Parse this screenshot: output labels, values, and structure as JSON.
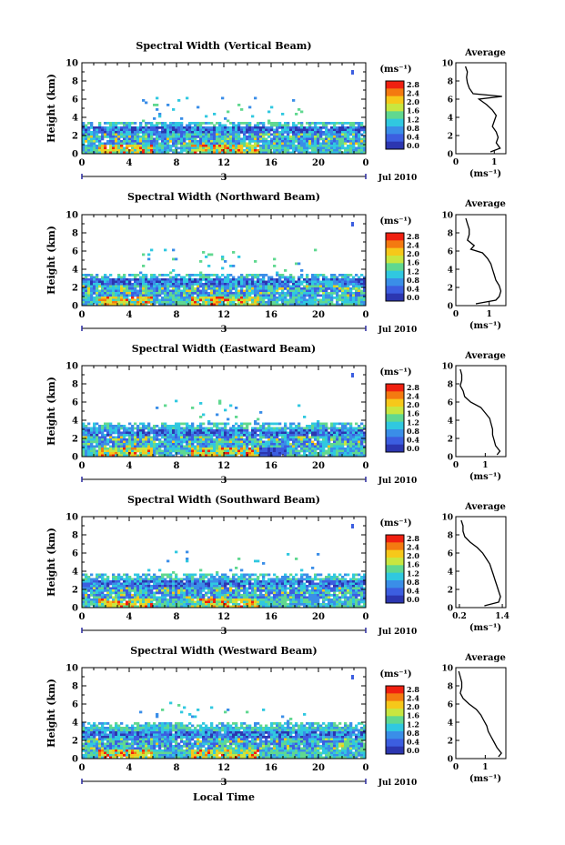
{
  "page": {
    "xlabel": "Local Time",
    "date_label": "Jul 2010",
    "day_label": "3"
  },
  "colorbar": {
    "unit_label": "(ms⁻¹)",
    "ticks": [
      "2.8",
      "2.4",
      "2.0",
      "1.6",
      "1.2",
      "0.8",
      "0.4",
      "0.0"
    ],
    "colors": [
      "#f02010",
      "#f47a10",
      "#f6c81a",
      "#c8e640",
      "#60d890",
      "#30c8e0",
      "#3a8ee8",
      "#3c5ee0",
      "#2c36b0"
    ]
  },
  "chart_data": [
    {
      "type": "heatmap",
      "title": "Spectral Width (Vertical Beam)",
      "ylabel": "Height (km)",
      "xlim": [
        0,
        24
      ],
      "ylim": [
        0,
        10
      ],
      "xticks": [
        "0",
        "4",
        "8",
        "12",
        "16",
        "20",
        "0"
      ],
      "yticks": [
        "0",
        "2",
        "4",
        "6",
        "8",
        "10"
      ],
      "cloud_top_km": 3.5,
      "avg_profile": {
        "title": "Average",
        "xlabel": "(ms⁻¹)",
        "xticks": [
          "0",
          "1"
        ],
        "xlim": [
          0,
          1.3
        ],
        "ylim": [
          0,
          10
        ],
        "points": [
          [
            0.25,
            9.6
          ],
          [
            0.3,
            9.0
          ],
          [
            0.28,
            8.4
          ],
          [
            0.3,
            7.8
          ],
          [
            0.35,
            7.2
          ],
          [
            0.45,
            6.6
          ],
          [
            1.2,
            6.3
          ],
          [
            0.6,
            6.0
          ],
          [
            0.8,
            5.4
          ],
          [
            0.95,
            4.8
          ],
          [
            1.05,
            4.2
          ],
          [
            1.0,
            3.6
          ],
          [
            0.95,
            3.0
          ],
          [
            1.05,
            2.4
          ],
          [
            1.1,
            1.8
          ],
          [
            1.05,
            1.2
          ],
          [
            1.15,
            0.6
          ],
          [
            0.9,
            0.2
          ]
        ]
      }
    },
    {
      "type": "heatmap",
      "title": "Spectral Width (Northward Beam)",
      "ylabel": "Height (km)",
      "xlim": [
        0,
        24
      ],
      "ylim": [
        0,
        10
      ],
      "xticks": [
        "0",
        "4",
        "8",
        "12",
        "16",
        "20",
        "0"
      ],
      "yticks": [
        "0",
        "2",
        "4",
        "6",
        "8",
        "10"
      ],
      "cloud_top_km": 3.5,
      "avg_profile": {
        "title": "Average",
        "xlabel": "(ms⁻¹)",
        "xticks": [
          "0",
          "1"
        ],
        "xlim": [
          0,
          1.5
        ],
        "ylim": [
          0,
          10
        ],
        "points": [
          [
            0.3,
            9.6
          ],
          [
            0.35,
            9.0
          ],
          [
            0.4,
            8.4
          ],
          [
            0.4,
            7.8
          ],
          [
            0.35,
            7.2
          ],
          [
            0.55,
            6.6
          ],
          [
            0.45,
            6.2
          ],
          [
            0.8,
            5.8
          ],
          [
            0.95,
            5.2
          ],
          [
            1.05,
            4.6
          ],
          [
            1.1,
            4.0
          ],
          [
            1.15,
            3.4
          ],
          [
            1.2,
            2.8
          ],
          [
            1.3,
            2.2
          ],
          [
            1.35,
            1.6
          ],
          [
            1.3,
            1.0
          ],
          [
            1.2,
            0.6
          ],
          [
            0.6,
            0.2
          ]
        ]
      }
    },
    {
      "type": "heatmap",
      "title": "Spectral Width (Eastward Beam)",
      "ylabel": "Height (km)",
      "xlim": [
        0,
        24
      ],
      "ylim": [
        0,
        10
      ],
      "xticks": [
        "0",
        "4",
        "8",
        "12",
        "16",
        "20",
        "0"
      ],
      "yticks": [
        "0",
        "2",
        "4",
        "6",
        "8",
        "10"
      ],
      "cloud_top_km": 3.8,
      "avg_profile": {
        "title": "Average",
        "xlabel": "(ms⁻¹)",
        "xticks": [
          "0",
          "1"
        ],
        "xlim": [
          0,
          1.7
        ],
        "ylim": [
          0,
          10
        ],
        "points": [
          [
            0.15,
            9.6
          ],
          [
            0.2,
            9.0
          ],
          [
            0.2,
            8.4
          ],
          [
            0.15,
            7.8
          ],
          [
            0.25,
            7.2
          ],
          [
            0.3,
            6.6
          ],
          [
            0.5,
            6.0
          ],
          [
            0.85,
            5.4
          ],
          [
            1.0,
            4.8
          ],
          [
            1.15,
            4.2
          ],
          [
            1.2,
            3.6
          ],
          [
            1.25,
            3.0
          ],
          [
            1.25,
            2.4
          ],
          [
            1.3,
            1.8
          ],
          [
            1.35,
            1.2
          ],
          [
            1.5,
            0.6
          ],
          [
            1.4,
            0.2
          ]
        ]
      }
    },
    {
      "type": "heatmap",
      "title": "Spectral Width (Southward Beam)",
      "ylabel": "Height (km)",
      "xlim": [
        0,
        24
      ],
      "ylim": [
        0,
        10
      ],
      "xticks": [
        "0",
        "4",
        "8",
        "12",
        "16",
        "20",
        "0"
      ],
      "yticks": [
        "0",
        "2",
        "4",
        "6",
        "8",
        "10"
      ],
      "cloud_top_km": 3.7,
      "avg_profile": {
        "title": "Average",
        "xlabel": "(ms⁻¹)",
        "xticks": [
          "0.2",
          "1.4"
        ],
        "xlim": [
          0.1,
          1.5
        ],
        "ylim": [
          0,
          10
        ],
        "points": [
          [
            0.25,
            9.6
          ],
          [
            0.3,
            9.0
          ],
          [
            0.3,
            8.4
          ],
          [
            0.35,
            7.8
          ],
          [
            0.5,
            7.2
          ],
          [
            0.7,
            6.6
          ],
          [
            0.85,
            6.0
          ],
          [
            0.95,
            5.4
          ],
          [
            1.05,
            4.8
          ],
          [
            1.1,
            4.2
          ],
          [
            1.15,
            3.6
          ],
          [
            1.2,
            3.0
          ],
          [
            1.25,
            2.4
          ],
          [
            1.3,
            1.8
          ],
          [
            1.35,
            1.2
          ],
          [
            1.3,
            0.6
          ],
          [
            0.9,
            0.2
          ]
        ]
      }
    },
    {
      "type": "heatmap",
      "title": "Spectral Width (Westward Beam)",
      "ylabel": "Height (km)",
      "xlim": [
        0,
        24
      ],
      "ylim": [
        0,
        10
      ],
      "xticks": [
        "0",
        "4",
        "8",
        "12",
        "16",
        "20",
        "0"
      ],
      "yticks": [
        "0",
        "2",
        "4",
        "6",
        "8",
        "10"
      ],
      "cloud_top_km": 4.0,
      "avg_profile": {
        "title": "Average",
        "xlabel": "(ms⁻¹)",
        "xticks": [
          "0",
          "1"
        ],
        "xlim": [
          0,
          1.7
        ],
        "ylim": [
          0,
          10
        ],
        "points": [
          [
            0.1,
            9.6
          ],
          [
            0.15,
            9.0
          ],
          [
            0.2,
            8.4
          ],
          [
            0.2,
            7.8
          ],
          [
            0.15,
            7.2
          ],
          [
            0.25,
            6.6
          ],
          [
            0.45,
            6.0
          ],
          [
            0.7,
            5.4
          ],
          [
            0.85,
            4.8
          ],
          [
            0.95,
            4.2
          ],
          [
            1.05,
            3.6
          ],
          [
            1.1,
            3.0
          ],
          [
            1.2,
            2.4
          ],
          [
            1.3,
            1.8
          ],
          [
            1.4,
            1.2
          ],
          [
            1.55,
            0.6
          ],
          [
            1.45,
            0.2
          ]
        ]
      }
    }
  ]
}
